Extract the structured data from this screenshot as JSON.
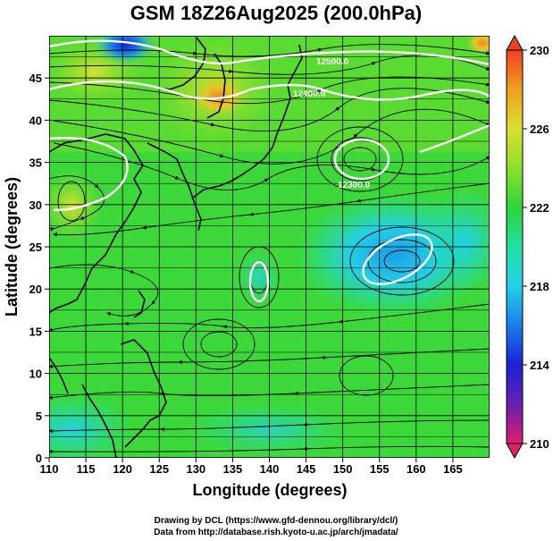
{
  "title": "GSM 18Z26Aug2025 (200.0hPa)",
  "xlabel": "Longitude (degrees)",
  "ylabel": "Latitude  (degrees)",
  "x_ticks": [
    "110",
    "115",
    "120",
    "125",
    "130",
    "135",
    "140",
    "145",
    "150",
    "155",
    "160",
    "165"
  ],
  "y_ticks": [
    "0",
    "5",
    "10",
    "15",
    "20",
    "25",
    "30",
    "35",
    "40",
    "45"
  ],
  "colorbar": {
    "ticks": [
      "230",
      "226",
      "222",
      "218",
      "214",
      "210"
    ],
    "colors": [
      "#e0206e",
      "#6a1fb0",
      "#1a22d8",
      "#1a7ee8",
      "#22d0e6",
      "#20e0a0",
      "#2ed43a",
      "#8ee02a",
      "#d8e030",
      "#f0a020",
      "#ee4020"
    ]
  },
  "contour_labels": [
    "12500.0",
    "12400.0",
    "12300.0"
  ],
  "footer": {
    "line1": "Drawing by DCL (https://www.gfd-dennou.org/library/dcl/)",
    "line2": "Data from http://database.rish.kyoto-u.ac.jp/arch/jmadata/"
  },
  "chart_data": {
    "type": "heatmap",
    "title": "GSM 18Z26Aug2025 (200.0hPa)",
    "xlabel": "Longitude (degrees)",
    "ylabel": "Latitude  (degrees)",
    "xlim": [
      110,
      170
    ],
    "ylim": [
      0,
      50
    ],
    "color_range": [
      210,
      230
    ],
    "grid": true,
    "overlays": [
      "streamlines",
      "geopotential height contours",
      "coastlines"
    ]
  }
}
